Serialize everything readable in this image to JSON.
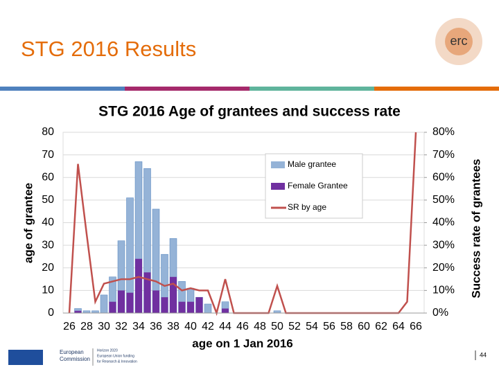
{
  "header": {
    "title": "STG 2016 Results",
    "logo": "erc"
  },
  "footer": {
    "commission": [
      "European",
      "Commission"
    ],
    "horizon": [
      "Horizon 2020",
      "European Union funding",
      "for Research & Innovation"
    ],
    "page": "44"
  },
  "chart_data": {
    "type": "bar",
    "title": "STG 2016 Age of grantees and success rate",
    "x_label": "age on 1 Jan 2016",
    "y_label": "age of grantee",
    "y2_label": "Success rate of grantees",
    "categories": [
      26,
      null,
      28,
      null,
      30,
      null,
      32,
      null,
      34,
      null,
      36,
      null,
      38,
      null,
      40,
      null,
      42,
      null,
      44,
      null,
      46,
      null,
      48,
      null,
      50,
      null,
      52,
      null,
      54,
      null,
      56,
      null,
      58,
      null,
      60,
      null,
      62,
      null,
      64,
      null,
      66
    ],
    "series": [
      {
        "name": "Male grantee",
        "type": "bar",
        "color": "#95b3d7",
        "values": [
          0,
          2,
          1,
          1,
          8,
          16,
          32,
          51,
          67,
          64,
          46,
          26,
          33,
          14,
          11,
          7,
          4,
          0,
          5,
          0,
          0,
          0,
          0,
          0,
          1,
          0,
          0,
          0,
          0,
          0,
          0,
          0,
          0,
          0,
          0,
          0,
          0,
          0,
          0,
          0,
          0
        ]
      },
      {
        "name": "Female Grantee",
        "type": "bar",
        "color": "#7030a0",
        "values": [
          0,
          1,
          0,
          0,
          0,
          5,
          10,
          9,
          24,
          18,
          10,
          7,
          16,
          5,
          5,
          7,
          0,
          0,
          2,
          0,
          0,
          0,
          0,
          0,
          0,
          0,
          0,
          0,
          0,
          0,
          0,
          0,
          0,
          0,
          0,
          0,
          0,
          0,
          0,
          0,
          0
        ]
      },
      {
        "name": "SR by age",
        "type": "line",
        "axis": "y2",
        "color": "#c0504d",
        "values": [
          0,
          66,
          35,
          5,
          13,
          14,
          15,
          15,
          16,
          15,
          14,
          12,
          13,
          10,
          11,
          10,
          10,
          0,
          15,
          0,
          0,
          0,
          0,
          0,
          12,
          0,
          0,
          0,
          0,
          0,
          0,
          0,
          0,
          0,
          0,
          0,
          0,
          0,
          0,
          5,
          80
        ]
      }
    ],
    "ylim": [
      0,
      80
    ],
    "yticks": [
      0,
      10,
      20,
      30,
      40,
      50,
      60,
      70,
      80
    ],
    "y2lim": [
      0,
      80
    ],
    "y2ticks": [
      {
        "value": 0,
        "label": "0%"
      },
      {
        "value": 10,
        "label": "10%"
      },
      {
        "value": 20,
        "label": "20%"
      },
      {
        "value": 30,
        "label": "30%"
      },
      {
        "value": 40,
        "label": "40%"
      },
      {
        "value": 50,
        "label": "50%"
      },
      {
        "value": 60,
        "label": "60%"
      },
      {
        "value": 70,
        "label": "70%"
      },
      {
        "value": 80,
        "label": "80%"
      }
    ],
    "grid": true,
    "legend": "top-right"
  }
}
